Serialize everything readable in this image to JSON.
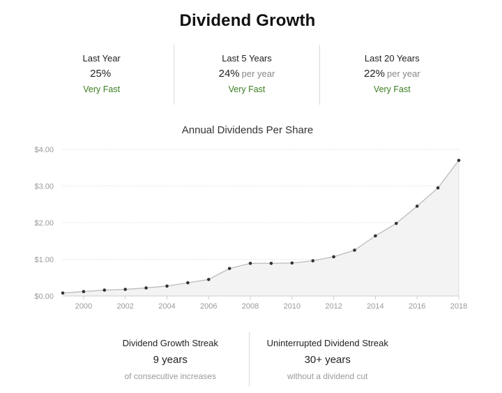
{
  "header": {
    "title": "Dividend Growth"
  },
  "growth_stats": [
    {
      "label": "Last Year",
      "value": "25%",
      "suffix": "",
      "rating": "Very Fast"
    },
    {
      "label": "Last 5 Years",
      "value": "24%",
      "suffix": "per year",
      "rating": "Very Fast"
    },
    {
      "label": "Last 20 Years",
      "value": "22%",
      "suffix": "per year",
      "rating": "Very Fast"
    }
  ],
  "colors": {
    "rating": "#3a7d1f",
    "line": "#bbbbbb",
    "area": "#f3f3f3",
    "point": "#333333"
  },
  "chart_data": {
    "type": "area",
    "title": "Annual Dividends Per Share",
    "xlabel": "",
    "ylabel": "",
    "grid": true,
    "x": [
      1999,
      2000,
      2001,
      2002,
      2003,
      2004,
      2005,
      2006,
      2007,
      2008,
      2009,
      2010,
      2011,
      2012,
      2013,
      2014,
      2015,
      2016,
      2017,
      2018
    ],
    "values": [
      0.08,
      0.12,
      0.16,
      0.18,
      0.22,
      0.27,
      0.36,
      0.45,
      0.75,
      0.89,
      0.89,
      0.9,
      0.96,
      1.07,
      1.25,
      1.64,
      1.98,
      2.45,
      2.95,
      3.7
    ],
    "xticks": [
      "2000",
      "2002",
      "2004",
      "2006",
      "2008",
      "2010",
      "2012",
      "2014",
      "2016",
      "2018"
    ],
    "yticks": [
      "$0.00",
      "$1.00",
      "$2.00",
      "$3.00",
      "$4.00"
    ],
    "ylim": [
      0,
      4
    ],
    "xlim": [
      1999,
      2018
    ]
  },
  "streaks": [
    {
      "label": "Dividend Growth Streak",
      "value": "9 years",
      "sub": "of consecutive increases"
    },
    {
      "label": "Uninterrupted Dividend Streak",
      "value": "30+ years",
      "sub": "without a dividend cut"
    }
  ]
}
